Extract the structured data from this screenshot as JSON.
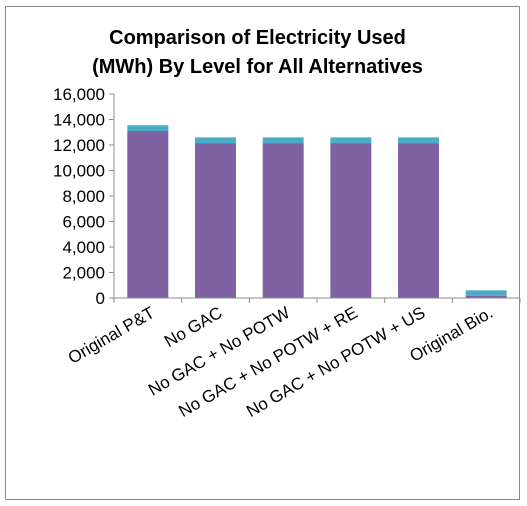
{
  "chart_data": {
    "type": "bar",
    "stacked": true,
    "title": [
      "Comparison of Electricity Used",
      "(MWh) By Level for All Alternatives"
    ],
    "xlabel": "",
    "ylabel": "",
    "ylim": [
      0,
      16000
    ],
    "yticks": [
      0,
      2000,
      4000,
      6000,
      8000,
      10000,
      12000,
      14000,
      16000
    ],
    "ytick_labels": [
      "0",
      "2,000",
      "4,000",
      "6,000",
      "8,000",
      "10,000",
      "12,000",
      "14,000",
      "16,000"
    ],
    "categories": [
      "Original P&T",
      "No GAC",
      "No GAC + No POTW",
      "No GAC + No POTW + RE",
      "No GAC + No POTW + US",
      "Original Bio."
    ],
    "series": [
      {
        "values": [
          13100,
          12150,
          12150,
          12150,
          12150,
          180
        ],
        "color": "#7f62a1"
      },
      {
        "values": [
          450,
          450,
          450,
          450,
          450,
          420
        ],
        "color": "#4aacc6"
      }
    ],
    "grid": false,
    "legend": "none"
  }
}
